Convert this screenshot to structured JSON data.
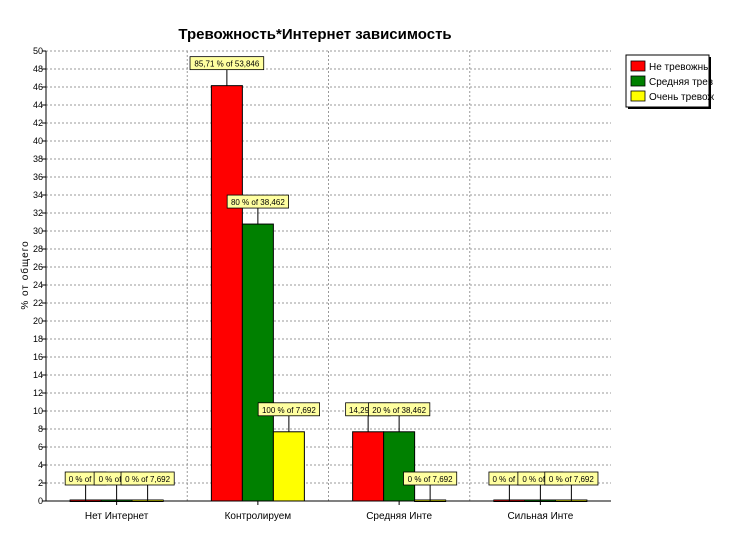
{
  "chart_data": {
    "type": "bar",
    "title": "Тревожность*Интернет зависимость",
    "ylabel": "% от общего",
    "xlabel": "",
    "ylim": [
      0,
      50
    ],
    "ytick_step": 2,
    "grid": true,
    "legend_position": "top-right",
    "categories": [
      "Нет Интернет",
      "Контролируем",
      "Средняя Инте",
      "Сильная Инте"
    ],
    "series": [
      {
        "name": "Не тревожны",
        "color": "#ff0000",
        "values": [
          0,
          46.15,
          7.69,
          0
        ],
        "labels": [
          "0 % of 53",
          "85,71 % of 53,846",
          "14,29 % of",
          "0 % of 53"
        ]
      },
      {
        "name": "Средняя трев",
        "color": "#008000",
        "values": [
          0,
          30.77,
          7.69,
          0
        ],
        "labels": [
          "0 % of 38,",
          "80 % of 38,462",
          "20 % of 38,462",
          "0 % of 38,"
        ]
      },
      {
        "name": "Очень тревож",
        "color": "#ffff00",
        "values": [
          0,
          7.69,
          0,
          0
        ],
        "labels": [
          "0 % of 7,692",
          "100 % of 7,692",
          "0 % of 7,692",
          "0 % of 7,692"
        ]
      }
    ]
  }
}
